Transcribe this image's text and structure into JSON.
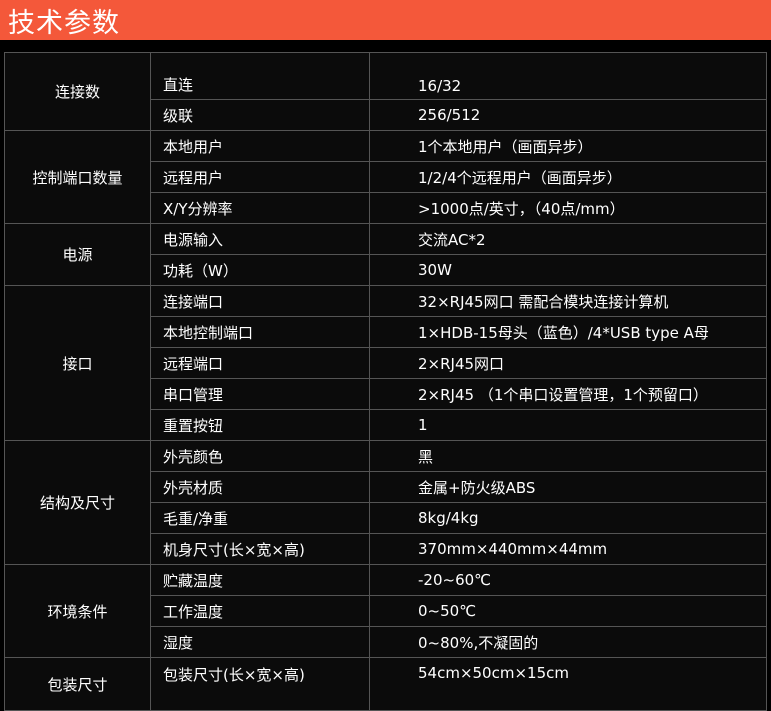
{
  "header": {
    "title": "技术参数"
  },
  "colors": {
    "header_bg": "#f4583a",
    "table_bg": "#0b0b0b"
  },
  "groups": [
    {
      "name": "连接数",
      "rows": [
        {
          "k": "直连",
          "v": "16/32"
        },
        {
          "k": "级联",
          "v": "256/512"
        }
      ]
    },
    {
      "name": "控制端口数量",
      "rows": [
        {
          "k": "本地用户",
          "v": "1个本地用户（画面异步）"
        },
        {
          "k": "远程用户",
          "v": "1/2/4个远程用户（画面异步）"
        },
        {
          "k": "X/Y分辨率",
          "v": ">1000点/英寸，（40点/mm）"
        }
      ]
    },
    {
      "name": "电源",
      "rows": [
        {
          "k": "电源输入",
          "v": "交流AC*2"
        },
        {
          "k": "功耗（W）",
          "v": "30W"
        }
      ]
    },
    {
      "name": "接口",
      "rows": [
        {
          "k": "连接端口",
          "v": "32×RJ45网口  需配合模块连接计算机"
        },
        {
          "k": "本地控制端口",
          "v": "1×HDB-15母头（蓝色）/4*USB type A母"
        },
        {
          "k": "远程端口",
          "v": "2×RJ45网口"
        },
        {
          "k": "串口管理",
          "v": "2×RJ45 （1个串口设置管理，1个预留口）"
        },
        {
          "k": "重置按钮",
          "v": "1"
        }
      ]
    },
    {
      "name": "结构及尺寸",
      "rows": [
        {
          "k": "外壳颜色",
          "v": "黑"
        },
        {
          "k": "外壳材质",
          "v": "金属+防火级ABS"
        },
        {
          "k": "毛重/净重",
          "v": "8kg/4kg"
        },
        {
          "k": "机身尺寸(长×宽×高)",
          "v": "370mm×440mm×44mm"
        }
      ]
    },
    {
      "name": "环境条件",
      "rows": [
        {
          "k": "贮藏温度",
          "v": "-20~60℃"
        },
        {
          "k": "工作温度",
          "v": "0~50℃"
        },
        {
          "k": "湿度",
          "v": "0~80%,不凝固的"
        }
      ]
    },
    {
      "name": "包装尺寸",
      "rows": [
        {
          "k": "包装尺寸(长×宽×高)",
          "v": "54cm×50cm×15cm"
        }
      ]
    }
  ]
}
